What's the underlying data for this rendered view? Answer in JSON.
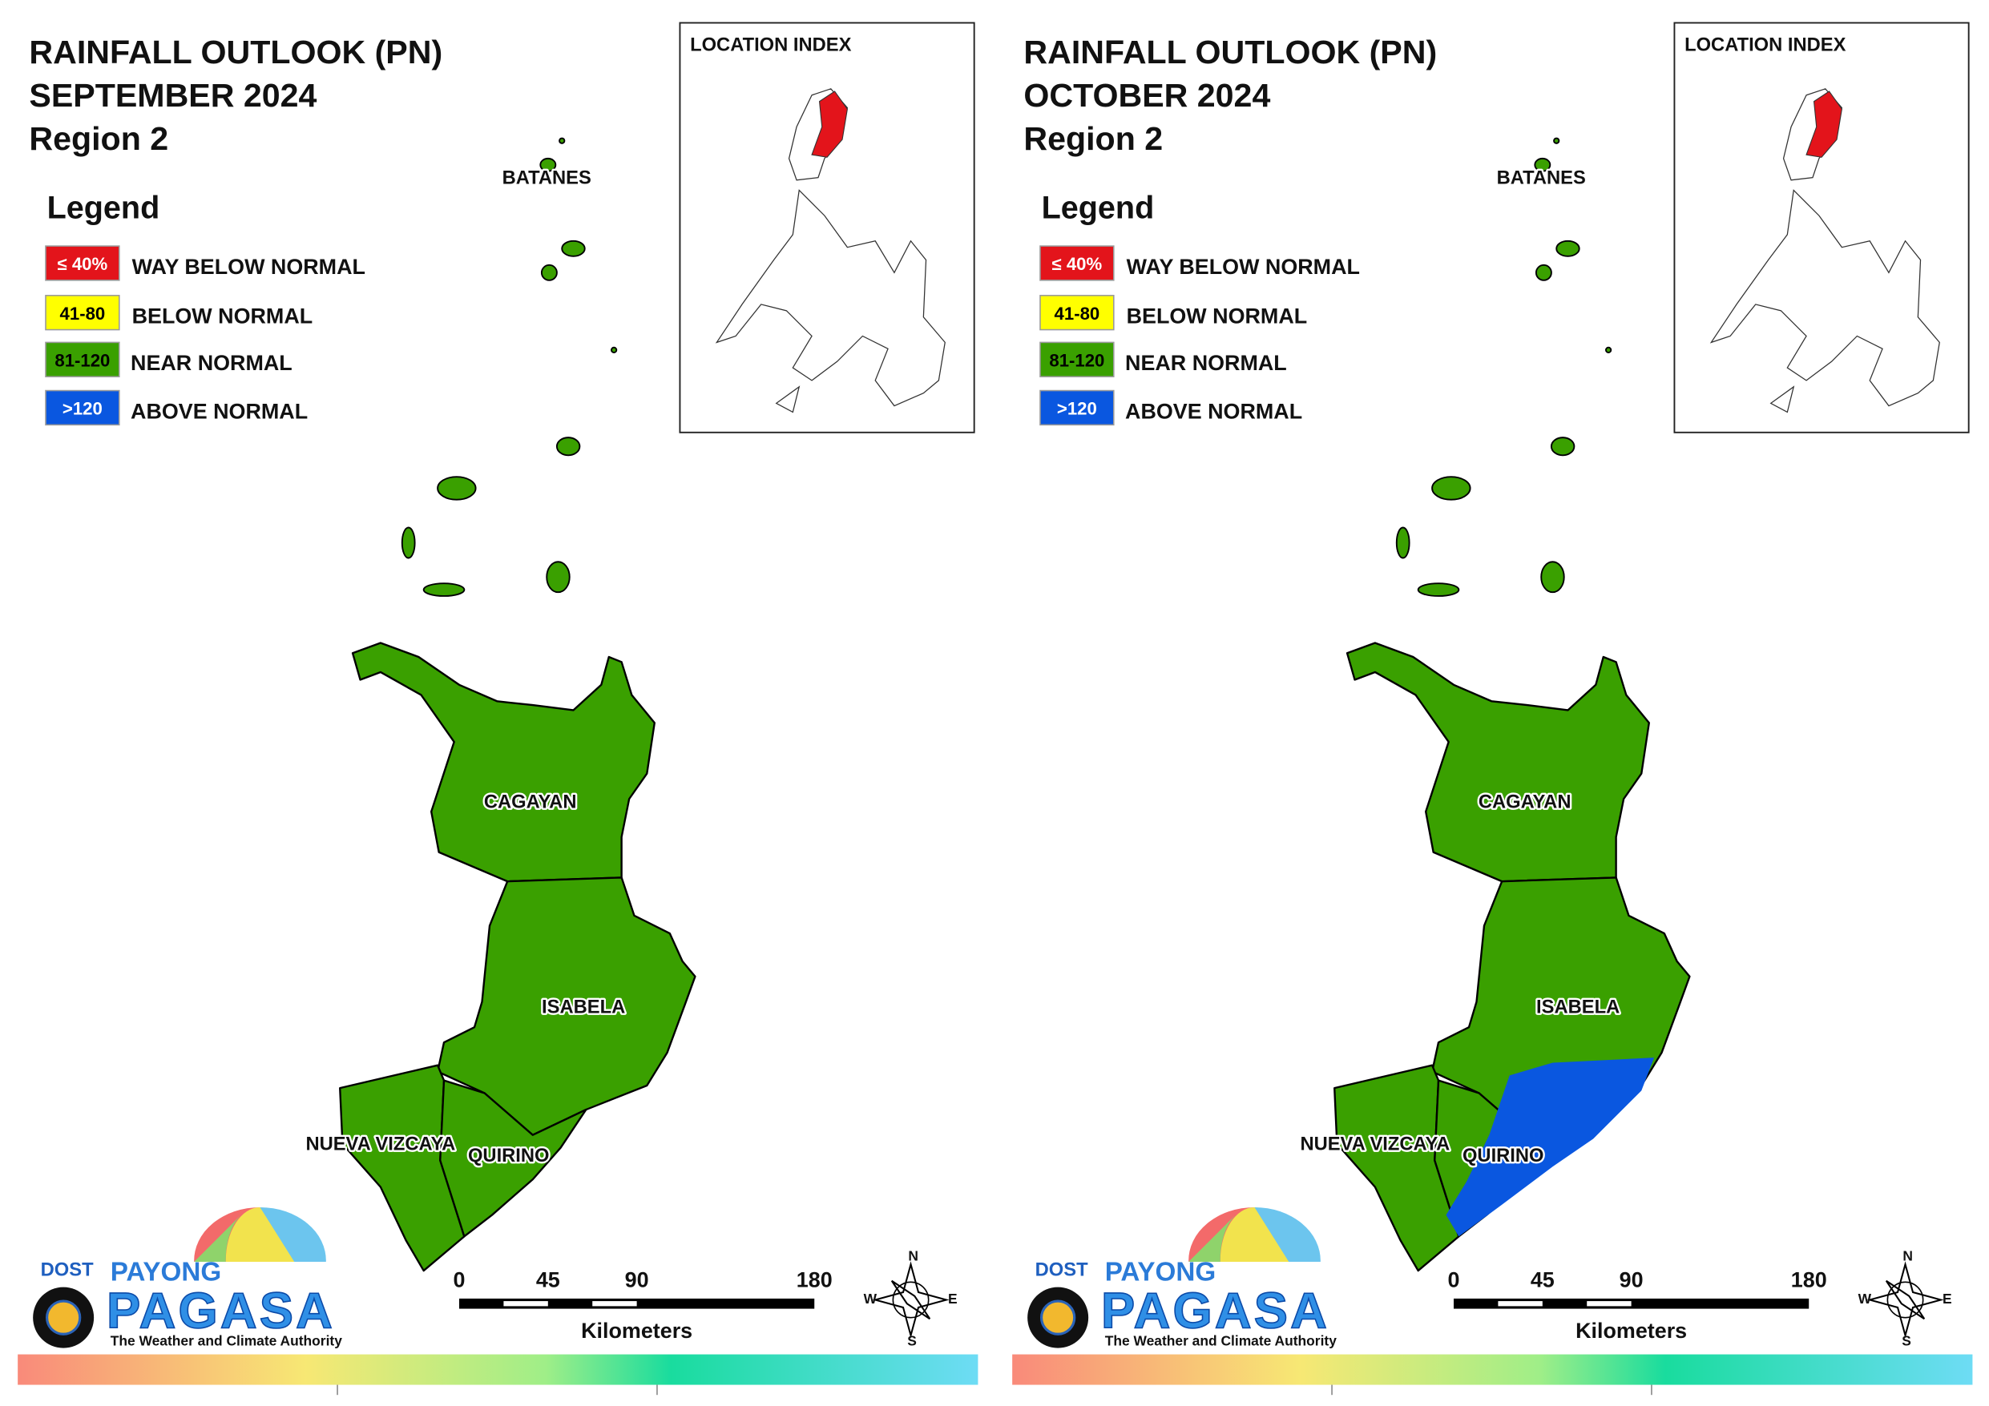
{
  "panels": [
    {
      "title": [
        "RAINFALL OUTLOOK (PN)",
        "SEPTEMBER 2024",
        "Region 2"
      ],
      "legend": {
        "title": "Legend",
        "items": [
          {
            "swatch": "≤ 40%",
            "label": "WAY BELOW NORMAL",
            "color": "#e3141b"
          },
          {
            "swatch": "41-80",
            "label": "BELOW NORMAL",
            "color": "#ffff00"
          },
          {
            "swatch": "81-120",
            "label": "NEAR NORMAL",
            "color": "#3aa000"
          },
          {
            "swatch": ">120",
            "label": "ABOVE NORMAL",
            "color": "#0a57e0"
          }
        ]
      },
      "location_index": "LOCATION INDEX",
      "provinces": [
        "BATANES",
        "CAGAYAN",
        "ISABELA",
        "NUEVA VIZCAYA",
        "QUIRINO"
      ],
      "scale": {
        "ticks": [
          0,
          45,
          90,
          180
        ],
        "unit": "Kilometers"
      },
      "compass": [
        "N",
        "E",
        "S",
        "W"
      ],
      "logo": {
        "dost": "DOST",
        "payong": "PAYONG",
        "pagasa": "PAGASA",
        "tagline": "The Weather and Climate Authority"
      }
    },
    {
      "title": [
        "RAINFALL OUTLOOK (PN)",
        "OCTOBER 2024",
        "Region 2"
      ],
      "legend": {
        "title": "Legend",
        "items": [
          {
            "swatch": "≤ 40%",
            "label": "WAY BELOW NORMAL",
            "color": "#e3141b"
          },
          {
            "swatch": "41-80",
            "label": "BELOW NORMAL",
            "color": "#ffff00"
          },
          {
            "swatch": "81-120",
            "label": "NEAR NORMAL",
            "color": "#3aa000"
          },
          {
            "swatch": ">120",
            "label": "ABOVE NORMAL",
            "color": "#0a57e0"
          }
        ]
      },
      "location_index": "LOCATION INDEX",
      "provinces": [
        "BATANES",
        "CAGAYAN",
        "ISABELA",
        "NUEVA VIZCAYA",
        "QUIRINO"
      ],
      "scale": {
        "ticks": [
          0,
          45,
          90,
          180
        ],
        "unit": "Kilometers"
      },
      "compass": [
        "N",
        "E",
        "S",
        "W"
      ],
      "logo": {
        "dost": "DOST",
        "payong": "PAYONG",
        "pagasa": "PAGASA",
        "tagline": "The Weather and Climate Authority"
      }
    }
  ]
}
